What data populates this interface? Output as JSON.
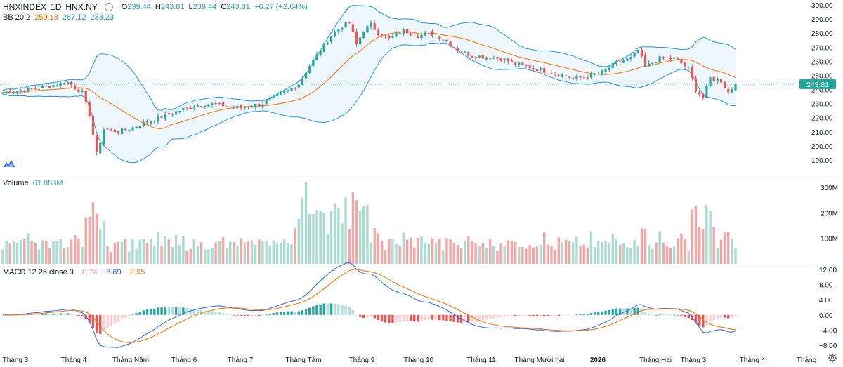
{
  "header": {
    "symbol": "HNXINDEX",
    "interval": "1D",
    "exchange": "HNX.NY",
    "o_label": "O",
    "o": "239.44",
    "h_label": "H",
    "h": "243.81",
    "l_label": "L",
    "l": "239.44",
    "c_label": "C",
    "c": "243.81",
    "change": "+6.27 (+2.64%)"
  },
  "bb_legend": {
    "label": "BB 20 2",
    "basis": "250.18",
    "upper": "267.12",
    "lower": "233.23"
  },
  "volume_legend": {
    "label": "Volume",
    "value": "61.888M"
  },
  "macd_legend": {
    "label": "MACD 12 26 close 9",
    "hist": "−0.74",
    "macd": "−3.69",
    "signal": "−2.95"
  },
  "last_price_label": "243.81",
  "price_axis": [
    "300.00",
    "290.00",
    "280.00",
    "270.00",
    "260.00",
    "250.00",
    "240.00",
    "230.00",
    "220.00",
    "210.00",
    "200.00",
    "190.00"
  ],
  "volume_axis": [
    "300M",
    "200M",
    "100M"
  ],
  "macd_axis": [
    "12.00",
    "8.00",
    "4.00",
    "0.00",
    "−4.00",
    "−8.00"
  ],
  "time_axis": [
    "Tháng 3",
    "Tháng 4",
    "Tháng Năm",
    "Tháng 6",
    "Tháng 7",
    "Tháng Tám",
    "Tháng 9",
    "Tháng 10",
    "Tháng 11",
    "Tháng Mười hai",
    "2026",
    "Tháng Hai",
    "Tháng 3",
    "Tháng 4",
    "Tháng"
  ],
  "colors": {
    "up": "#26a69a",
    "down": "#ef5350",
    "up_vol": "#a9dccf",
    "down_vol": "#f4a6a6",
    "bb_band": "#2196f3",
    "bb_basis": "#ff6d00",
    "macd": "#2962ff",
    "signal": "#ff6d00",
    "hist_up": "#26a69a",
    "hist_down": "#ef5350",
    "last_price": "#26a69a"
  },
  "icons": {
    "settings": "gear-icon",
    "logo": "tradingview-logo-icon",
    "visibility": "eye-icon"
  },
  "chart_data": [
    {
      "type": "candlestick",
      "title": "HNXINDEX",
      "xlabel": "",
      "ylabel": "",
      "ylim": [
        185,
        302
      ],
      "anchors_close": [
        [
          0,
          238
        ],
        [
          10,
          241
        ],
        [
          18,
          245
        ],
        [
          22,
          238
        ],
        [
          24,
          222
        ],
        [
          26,
          194
        ],
        [
          28,
          212
        ],
        [
          32,
          210
        ],
        [
          36,
          213
        ],
        [
          42,
          219
        ],
        [
          50,
          226
        ],
        [
          56,
          230
        ],
        [
          60,
          229
        ],
        [
          66,
          227
        ],
        [
          72,
          230
        ],
        [
          78,
          238
        ],
        [
          82,
          244
        ],
        [
          85,
          257
        ],
        [
          88,
          268
        ],
        [
          91,
          278
        ],
        [
          94,
          285
        ],
        [
          96,
          287
        ],
        [
          98,
          272
        ],
        [
          100,
          282
        ],
        [
          102,
          286
        ],
        [
          104,
          280
        ],
        [
          107,
          276
        ],
        [
          111,
          282
        ],
        [
          115,
          278
        ],
        [
          118,
          280
        ],
        [
          122,
          276
        ],
        [
          126,
          268
        ],
        [
          130,
          264
        ],
        [
          134,
          263
        ],
        [
          138,
          262
        ],
        [
          142,
          258
        ],
        [
          146,
          256
        ],
        [
          150,
          253
        ],
        [
          154,
          251
        ],
        [
          158,
          248
        ],
        [
          162,
          249
        ],
        [
          166,
          252
        ],
        [
          170,
          259
        ],
        [
          174,
          262
        ],
        [
          176,
          268
        ],
        [
          178,
          256
        ],
        [
          182,
          262
        ],
        [
          186,
          262
        ],
        [
          190,
          255
        ],
        [
          192,
          240
        ],
        [
          194,
          234
        ],
        [
          196,
          248
        ],
        [
          199,
          246
        ],
        [
          201,
          238
        ],
        [
          203,
          243.81
        ]
      ],
      "last_close": 243.81
    },
    {
      "type": "bar",
      "title": "Volume",
      "ylim": [
        0,
        330
      ],
      "unit": "M",
      "last_value": 61.888
    },
    {
      "type": "line",
      "title": "MACD 12 26 close 9",
      "ylim": [
        -10,
        12
      ],
      "series_last": {
        "histogram": -0.74,
        "macd": -3.69,
        "signal": -2.95
      }
    }
  ]
}
